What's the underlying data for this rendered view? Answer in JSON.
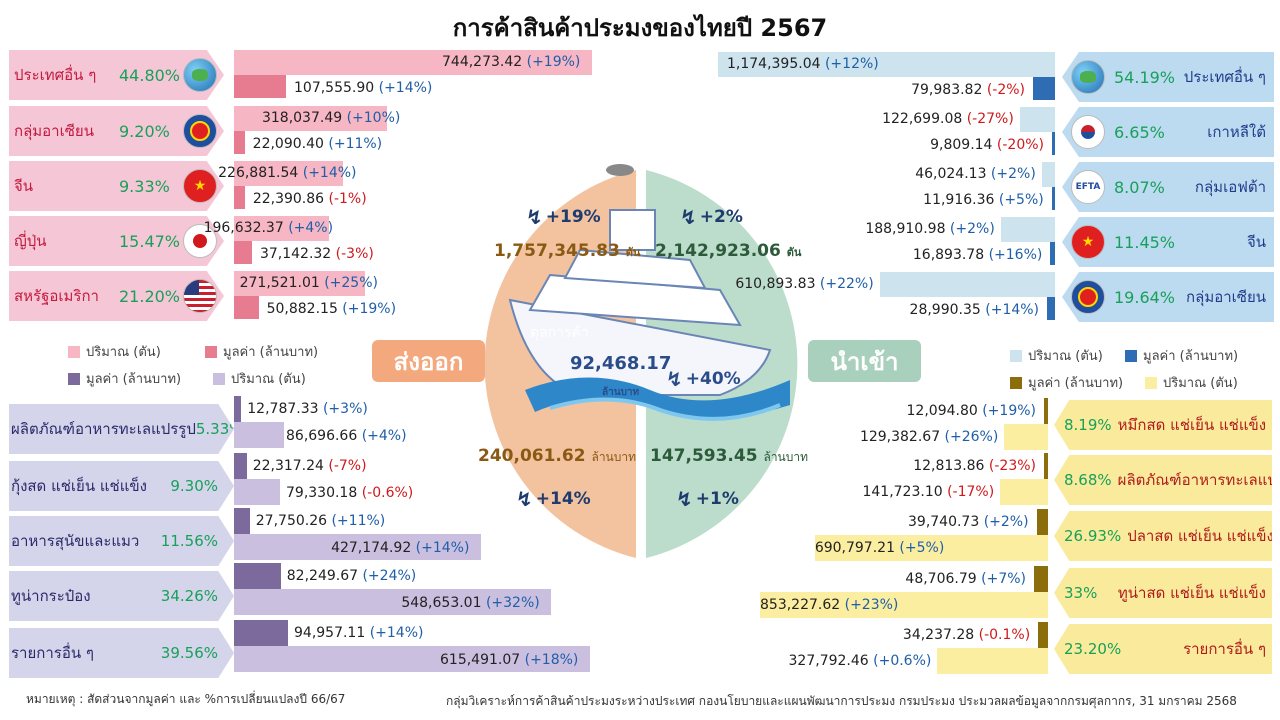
{
  "title": "การค้าสินค้าประมงของไทยปี  2567",
  "colors": {
    "export_qty": "#f7b6c4",
    "export_val": "#e77b8f",
    "import_qty": "#cde4ee",
    "import_val": "#2e6db4",
    "prod_exp_val": "#7d6a9d",
    "prod_exp_qty": "#cbbfe0",
    "prod_imp_val": "#8c6d0b",
    "prod_imp_qty": "#fbeea0",
    "pos": "#1f5fa8",
    "neg": "#d0191c",
    "green": "#18a05a"
  },
  "center": {
    "export_label": "ส่งออก",
    "import_label": "นำเข้า",
    "export_qty": "1,757,345.83",
    "export_qty_unit": "ตัน",
    "export_qty_change": "+19%",
    "import_qty": "2,142,923.06",
    "import_qty_unit": "ตัน",
    "import_qty_change": "+2%",
    "export_val": "240,061.62",
    "export_val_unit": "ล้านบาท",
    "export_val_change": "+14%",
    "import_val": "147,593.45",
    "import_val_unit": "ล้านบาท",
    "import_val_change": "+1%",
    "balance_label": "ดุลการค้า",
    "balance_value": "92,468.17",
    "balance_unit": "ล้านบาท",
    "balance_change": "+40%"
  },
  "legend": {
    "export_qty": "ปริมาณ (ตัน)",
    "export_val": "มูลค่า (ล้านบาท)",
    "import_qty": "ปริมาณ (ตัน)",
    "import_val": "มูลค่า (ล้านบาท)",
    "prod_exp_val": "มูลค่า (ล้านบาท)",
    "prod_exp_qty": "ปริมาณ (ตัน)",
    "prod_imp_val": "มูลค่า (ล้านบาท)",
    "prod_imp_qty": "ปริมาณ (ตัน)"
  },
  "footer": {
    "note": "หมายเหตุ : สัดส่วนจากมูลค่า และ %การเปลี่ยนแปลงปี 66/67",
    "source": "กลุ่มวิเคราะห์การค้าสินค้าประมงระหว่างประเทศ กองนโยบายและแผนพัฒนาการประมง กรมประมง ประมวลผลข้อมูลจากกรมศุลกากร, 31 มกราคม 2568"
  },
  "chart_data": [
    {
      "type": "bar",
      "title": "ส่งออก",
      "categories": [
        "ประเทศอื่น ๆ",
        "กลุ่มอาเซียน",
        "จีน",
        "ญี่ปุ่น",
        "สหรัฐอเมริกา"
      ],
      "shares": [
        "44.80%",
        "9.20%",
        "9.33%",
        "15.47%",
        "21.20%"
      ],
      "icons": [
        "globe-icon",
        "asean-icon",
        "china-flag-icon",
        "japan-flag-icon",
        "usa-flag-icon"
      ],
      "series": [
        {
          "name": "ปริมาณ (ตัน)",
          "values": [
            744273.42,
            318037.49,
            226881.54,
            196632.37,
            271521.01
          ],
          "labels": [
            "744,273.42",
            "318,037.49",
            "226,881.54",
            "196,632.37",
            "271,521.01"
          ],
          "changes": [
            "+19%",
            "+10%",
            "+14%",
            "+4%",
            "+25%"
          ]
        },
        {
          "name": "มูลค่า (ล้านบาท)",
          "values": [
            107555.9,
            22090.4,
            22390.86,
            37142.32,
            50882.15
          ],
          "labels": [
            "107,555.90",
            "22,090.40",
            "22,390.86",
            "37,142.32",
            "50,882.15"
          ],
          "changes": [
            "+14%",
            "+11%",
            "-1%",
            "-3%",
            "+19%"
          ]
        }
      ]
    },
    {
      "type": "bar",
      "title": "นำเข้า",
      "categories": [
        "ประเทศอื่น ๆ",
        "เกาหลีใต้",
        "กลุ่มเอฟต้า",
        "จีน",
        "กลุ่มอาเซียน"
      ],
      "shares": [
        "54.19%",
        "6.65%",
        "8.07%",
        "11.45%",
        "19.64%"
      ],
      "icons": [
        "globe-icon",
        "korea-flag-icon",
        "efta-icon",
        "china-flag-icon",
        "asean-icon"
      ],
      "series": [
        {
          "name": "ปริมาณ (ตัน)",
          "values": [
            1174395.04,
            122699.08,
            46024.13,
            188910.98,
            610893.83
          ],
          "labels": [
            "1,174,395.04",
            "122,699.08",
            "46,024.13",
            "188,910.98",
            "610,893.83"
          ],
          "changes": [
            "+12%",
            "-27%",
            "+2%",
            "+2%",
            "+22%"
          ]
        },
        {
          "name": "มูลค่า (ล้านบาท)",
          "values": [
            79983.82,
            9809.14,
            11916.36,
            16893.78,
            28990.35
          ],
          "labels": [
            "79,983.82",
            "9,809.14",
            "11,916.36",
            "16,893.78",
            "28,990.35"
          ],
          "changes": [
            "-2%",
            "-20%",
            "+5%",
            "+16%",
            "+14%"
          ]
        }
      ]
    },
    {
      "type": "bar",
      "title": "ส่งออก",
      "categories": [
        "ผลิตภัณฑ์อาหารทะเลแปรรูป",
        "กุ้งสด แช่เย็น แช่แข็ง",
        "อาหารสุนัขและแมว",
        "ทูน่ากระป๋อง",
        "รายการอื่น ๆ"
      ],
      "shares": [
        "5.33%",
        "9.30%",
        "11.56%",
        "34.26%",
        "39.56%"
      ],
      "series": [
        {
          "name": "มูลค่า (ล้านบาท)",
          "values": [
            12787.33,
            22317.24,
            27750.26,
            82249.67,
            94957.11
          ],
          "labels": [
            "12,787.33",
            "22,317.24",
            "27,750.26",
            "82,249.67",
            "94,957.11"
          ],
          "changes": [
            "+3%",
            "-7%",
            "+11%",
            "+24%",
            "+14%"
          ]
        },
        {
          "name": "ปริมาณ (ตัน)",
          "values": [
            86696.66,
            79330.18,
            427174.92,
            548653.01,
            615491.07
          ],
          "labels": [
            "86,696.66",
            "79,330.18",
            "427,174.92",
            "548,653.01",
            "615,491.07"
          ],
          "changes": [
            "+4%",
            "-0.6%",
            "+14%",
            "+32%",
            "+18%"
          ]
        }
      ]
    },
    {
      "type": "bar",
      "title": "นำเข้า",
      "categories": [
        "หมึกสด แช่เย็น แช่แข็ง",
        "ผลิตภัณฑ์อาหารทะเลแปรรูป",
        "ปลาสด แช่เย็น แช่แข็ง",
        "ทูน่าสด แช่เย็น แช่แข็ง",
        "รายการอื่น ๆ"
      ],
      "shares": [
        "8.19%",
        "8.68%",
        "26.93%",
        "33%",
        "23.20%"
      ],
      "series": [
        {
          "name": "มูลค่า (ล้านบาท)",
          "values": [
            12094.8,
            12813.86,
            39740.73,
            48706.79,
            34237.28
          ],
          "labels": [
            "12,094.80",
            "12,813.86",
            "39,740.73",
            "48,706.79",
            "34,237.28"
          ],
          "changes": [
            "+19%",
            "-23%",
            "+2%",
            "+7%",
            "-0.1%"
          ]
        },
        {
          "name": "ปริมาณ (ตัน)",
          "values": [
            129382.67,
            141723.1,
            690797.21,
            853227.62,
            327792.46
          ],
          "labels": [
            "129,382.67",
            "141,723.10",
            "690,797.21",
            "853,227.62",
            "327,792.46"
          ],
          "changes": [
            "+26%",
            "-17%",
            "+5%",
            "+23%",
            "+0.6%"
          ]
        }
      ]
    }
  ]
}
